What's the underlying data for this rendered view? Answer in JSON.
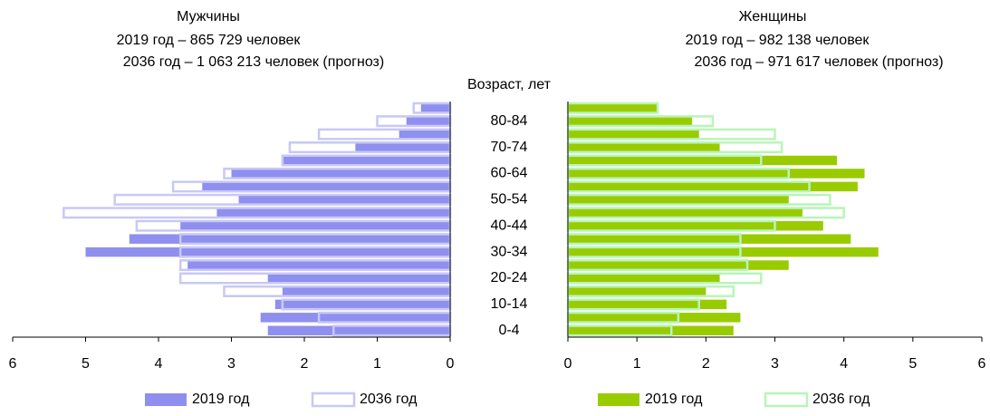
{
  "chart_data": [
    {
      "type": "bar",
      "orientation": "horizontal",
      "x_reversed": true,
      "title": "Мужчины",
      "subtitle": [
        "2019 год – 865 729 человек",
        "2036 год – 1 063 213 человек (прогноз)"
      ],
      "y_label": "Возраст, лет",
      "categories": [
        "0-4",
        null,
        "10-14",
        null,
        "20-24",
        null,
        "30-34",
        null,
        "40-44",
        null,
        "50-54",
        null,
        "60-64",
        null,
        "70-74",
        null,
        "80-84",
        null
      ],
      "xlim": [
        0,
        6
      ],
      "xticks": [
        0,
        1,
        2,
        3,
        4,
        5,
        6
      ],
      "series": [
        {
          "name": "2019 год",
          "color": "#8f8fef",
          "style": "filled",
          "values": [
            2.5,
            2.6,
            2.4,
            2.3,
            2.5,
            3.6,
            5.0,
            4.4,
            3.7,
            3.2,
            2.9,
            3.4,
            3.0,
            2.3,
            1.3,
            0.7,
            0.6,
            0.4
          ]
        },
        {
          "name": "2036 год",
          "color": "#c8c8f6",
          "style": "outline",
          "values": [
            1.6,
            1.8,
            2.3,
            3.1,
            3.7,
            3.7,
            3.7,
            3.7,
            4.3,
            5.3,
            4.6,
            3.8,
            3.1,
            2.3,
            2.2,
            1.8,
            1.0,
            0.5
          ]
        }
      ]
    },
    {
      "type": "bar",
      "orientation": "horizontal",
      "x_reversed": false,
      "title": "Женщины",
      "subtitle": [
        "2019 год – 982 138 человек",
        "2036 год – 971 617 человек (прогноз)"
      ],
      "xlim": [
        0,
        6
      ],
      "xticks": [
        0,
        1,
        2,
        3,
        4,
        5,
        6
      ],
      "series": [
        {
          "name": "2019 год",
          "color": "#99cc00",
          "style": "filled",
          "values": [
            2.4,
            2.5,
            2.3,
            2.0,
            2.2,
            3.2,
            4.5,
            4.1,
            3.7,
            3.4,
            3.2,
            4.2,
            4.3,
            3.9,
            2.2,
            1.9,
            1.8,
            1.3
          ]
        },
        {
          "name": "2036 год",
          "color": "#b8f5b8",
          "style": "outline",
          "values": [
            1.5,
            1.6,
            1.9,
            2.4,
            2.8,
            2.6,
            2.5,
            2.5,
            3.0,
            4.0,
            3.8,
            3.5,
            3.2,
            2.8,
            3.1,
            3.0,
            2.1,
            1.3
          ]
        }
      ]
    }
  ]
}
